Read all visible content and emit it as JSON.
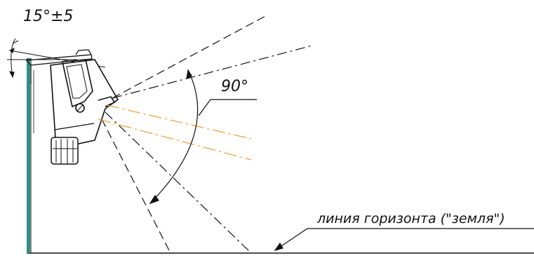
{
  "labels": {
    "tilt_angle": "15°±5",
    "beam_angle": "90°",
    "horizon_line": "линия горизонта (\"земля\")"
  },
  "colors": {
    "ink": "#111111",
    "wall": "#2e8f86",
    "beam_axis": "#f0a040",
    "background": "#ffffff"
  },
  "parts": {
    "wall": "mounting-wall",
    "bracket": "mounting-bracket",
    "housing": "sensor-housing",
    "gland": "cable-gland",
    "beam_cone": "detection-cone",
    "horizon": "ground-line"
  }
}
